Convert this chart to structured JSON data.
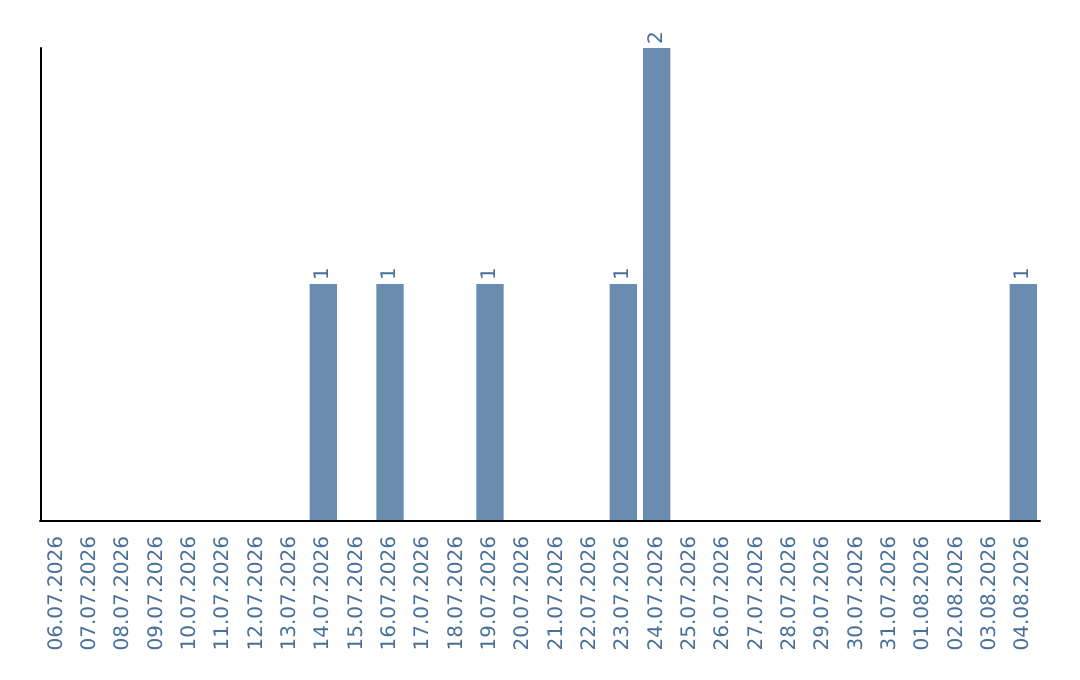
{
  "chart_data": {
    "type": "bar",
    "categories": [
      "06.07.2026",
      "07.07.2026",
      "08.07.2026",
      "09.07.2026",
      "10.07.2026",
      "11.07.2026",
      "12.07.2026",
      "13.07.2026",
      "14.07.2026",
      "15.07.2026",
      "16.07.2026",
      "17.07.2026",
      "18.07.2026",
      "19.07.2026",
      "20.07.2026",
      "21.07.2026",
      "22.07.2026",
      "23.07.2026",
      "24.07.2026",
      "25.07.2026",
      "26.07.2026",
      "27.07.2026",
      "28.07.2026",
      "29.07.2026",
      "30.07.2026",
      "31.07.2026",
      "01.08.2026",
      "02.08.2026",
      "03.08.2026",
      "04.08.2026"
    ],
    "values": [
      0,
      0,
      0,
      0,
      0,
      0,
      0,
      0,
      1,
      0,
      1,
      0,
      0,
      1,
      0,
      0,
      0,
      1,
      2,
      0,
      0,
      0,
      0,
      0,
      0,
      0,
      0,
      0,
      0,
      1
    ],
    "value_labels": [
      null,
      null,
      null,
      null,
      null,
      null,
      null,
      null,
      "1",
      null,
      "1",
      null,
      null,
      "1",
      null,
      null,
      null,
      "1",
      "2",
      null,
      null,
      null,
      null,
      null,
      null,
      null,
      null,
      null,
      null,
      "1"
    ],
    "color": "#6a8caf",
    "grid": false
  }
}
